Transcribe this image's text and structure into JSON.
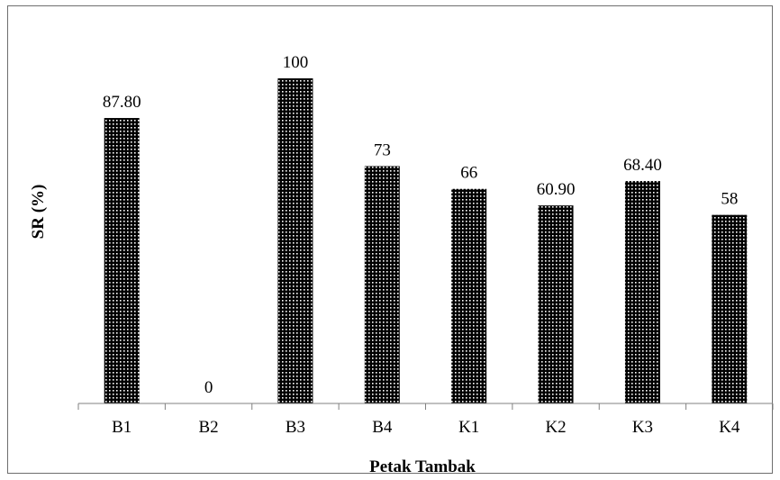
{
  "chart_data": {
    "type": "bar",
    "xlabel": "Petak Tambak",
    "ylabel": "SR (%)",
    "categories": [
      "B1",
      "B2",
      "B3",
      "B4",
      "K1",
      "K2",
      "K3",
      "K4"
    ],
    "values": [
      87.8,
      0,
      100,
      73,
      66,
      60.9,
      68.4,
      58
    ],
    "data_labels": [
      "87.80",
      "0",
      "100",
      "73",
      "66",
      "60.90",
      "68.40",
      "58"
    ],
    "ylim": [
      0,
      100
    ],
    "grid": false,
    "legend": "none",
    "bar_fill": "dotted-pattern",
    "colors": {
      "bar_dark": "#000000",
      "bar_dots": "#ffffff",
      "frame": "#6e6e6e",
      "axis": "#808080"
    }
  }
}
